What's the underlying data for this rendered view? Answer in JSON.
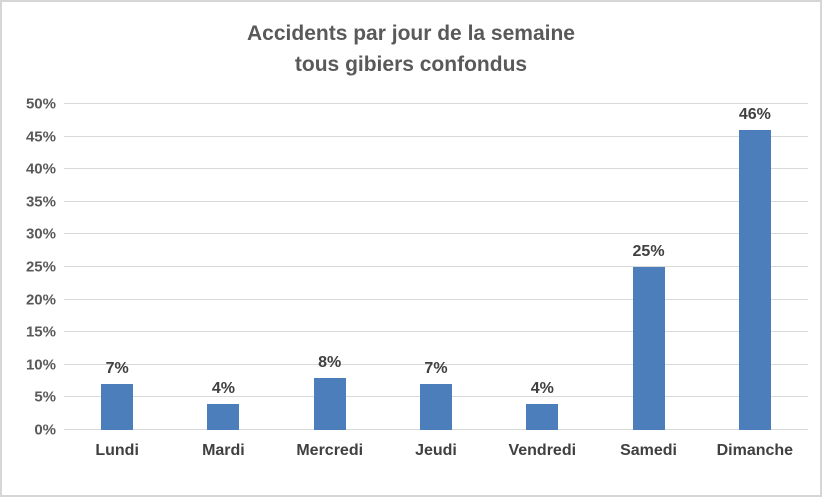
{
  "chart_data": {
    "type": "bar",
    "title": "Accidents par jour de la semaine",
    "subtitle": "tous gibiers confondus",
    "categories": [
      "Lundi",
      "Mardi",
      "Mercredi",
      "Jeudi",
      "Vendredi",
      "Samedi",
      "Dimanche"
    ],
    "values": [
      7,
      4,
      8,
      7,
      4,
      25,
      46
    ],
    "data_labels": [
      "7%",
      "4%",
      "8%",
      "7%",
      "4%",
      "25%",
      "46%"
    ],
    "y_ticks": [
      0,
      5,
      10,
      15,
      20,
      25,
      30,
      35,
      40,
      45,
      50
    ],
    "y_tick_labels": [
      "0%",
      "5%",
      "10%",
      "15%",
      "20%",
      "25%",
      "30%",
      "35%",
      "40%",
      "45%",
      "50%"
    ],
    "xlabel": "",
    "ylabel": "",
    "ylim": [
      0,
      50
    ],
    "grid": true,
    "legend_position": "none",
    "bar_color": "#4d7ebc",
    "gridline_color": "#d9d9d9",
    "title_color": "#595959",
    "label_color": "#404040",
    "tick_color": "#595959",
    "frame_border_color": "#d6d6d6"
  }
}
